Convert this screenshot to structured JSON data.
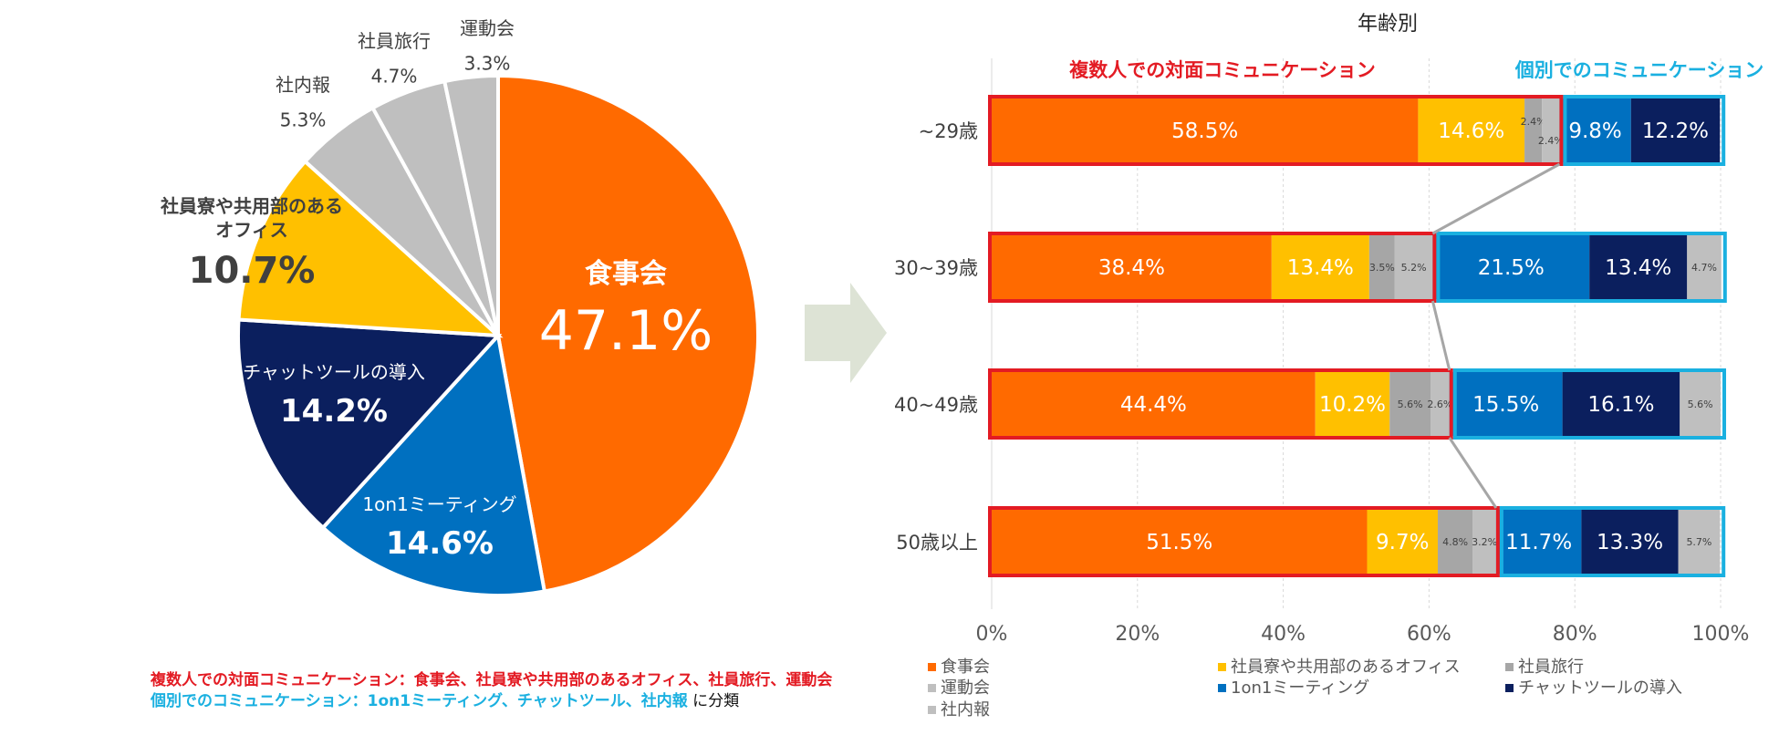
{
  "colors": {
    "orange": "#ff6a00",
    "yellow": "#ffc000",
    "navy": "#0b1f5e",
    "blue": "#0070c0",
    "gray": "#bfbfbf",
    "darkgray": "#a6a6a6",
    "red_frame": "#e31b23",
    "cyan_frame": "#1ab0e0",
    "arrow": "#dde3d5"
  },
  "chart_data": [
    {
      "type": "pie",
      "title": "",
      "slices": [
        {
          "label": "食事会",
          "value": 47.1,
          "value_label": "47.1%",
          "color": "#ff6a00"
        },
        {
          "label": "1on1ミーティング",
          "value": 14.6,
          "value_label": "14.6%",
          "color": "#0070c0"
        },
        {
          "label": "チャットツールの導入",
          "value": 14.2,
          "value_label": "14.2%",
          "color": "#0b1f5e"
        },
        {
          "label": "社員寮や共用部のあるオフィス",
          "label_lines": [
            "社員寮や共用部のある",
            "オフィス"
          ],
          "value": 10.7,
          "value_label": "10.7%",
          "color": "#ffc000"
        },
        {
          "label": "社内報",
          "value": 5.3,
          "value_label": "5.3%",
          "color": "#bfbfbf"
        },
        {
          "label": "社員旅行",
          "value": 4.7,
          "value_label": "4.7%",
          "color": "#bfbfbf"
        },
        {
          "label": "運動会",
          "value": 3.3,
          "value_label": "3.3%",
          "color": "#bfbfbf"
        }
      ]
    },
    {
      "type": "bar",
      "orientation": "horizontal",
      "stacked": true,
      "title": "年齢別",
      "categories": [
        "~29歳",
        "30~39歳",
        "40~49歳",
        "50歳以上"
      ],
      "xlim": [
        0,
        100
      ],
      "x_ticks": [
        "0%",
        "20%",
        "40%",
        "60%",
        "80%",
        "100%"
      ],
      "series": [
        {
          "name": "食事会",
          "color": "#ff6a00",
          "values": [
            58.5,
            38.4,
            44.4,
            51.5
          ],
          "labels": [
            "58.5%",
            "38.4%",
            "44.4%",
            "51.5%"
          ]
        },
        {
          "name": "社員寮や共用部のあるオフィス",
          "color": "#ffc000",
          "values": [
            14.6,
            13.4,
            10.2,
            9.7
          ],
          "labels": [
            "14.6%",
            "13.4%",
            "10.2%",
            "9.7%"
          ]
        },
        {
          "name": "社員旅行",
          "color": "#a6a6a6",
          "values": [
            2.4,
            3.5,
            5.6,
            4.8
          ],
          "labels": [
            "2.4%",
            "3.5%",
            "5.6%",
            "4.8%"
          ]
        },
        {
          "name": "運動会",
          "color": "#bfbfbf",
          "values": [
            2.4,
            5.2,
            2.6,
            3.2
          ],
          "labels": [
            "2.4%",
            "5.2%",
            "2.6%",
            "3.2%"
          ]
        },
        {
          "name": "1on1ミーティング",
          "color": "#0070c0",
          "values": [
            9.8,
            21.5,
            15.5,
            11.7
          ],
          "labels": [
            "9.8%",
            "21.5%",
            "15.5%",
            "11.7%"
          ]
        },
        {
          "name": "チャットツールの導入",
          "color": "#0b1f5e",
          "values": [
            12.2,
            13.4,
            16.1,
            13.3
          ],
          "labels": [
            "12.2%",
            "13.4%",
            "16.1%",
            "13.3%"
          ]
        },
        {
          "name": "社内報",
          "color": "#bfbfbf",
          "values": [
            0.0,
            4.7,
            5.6,
            5.7
          ],
          "labels": [
            "",
            "4.7%",
            "5.6%",
            "5.7%"
          ]
        }
      ],
      "group_labels": {
        "group_a": "複数人での対面コミュニケーション",
        "group_b": "個別でのコミュニケーション"
      },
      "legend_order": [
        "食事会",
        "社員寮や共用部のあるオフィス",
        "社員旅行",
        "運動会",
        "1on1ミーティング",
        "チャットツールの導入",
        "社内報"
      ]
    }
  ],
  "footnote": {
    "line1_red": "複数人での対面コミュニケーション：食事会、社員寮や共用部のあるオフィス、社員旅行、運動会",
    "line2_blue": "個別でのコミュニケーション：1on1ミーティング、チャットツール、社内報",
    "line2_black": " に分類"
  }
}
